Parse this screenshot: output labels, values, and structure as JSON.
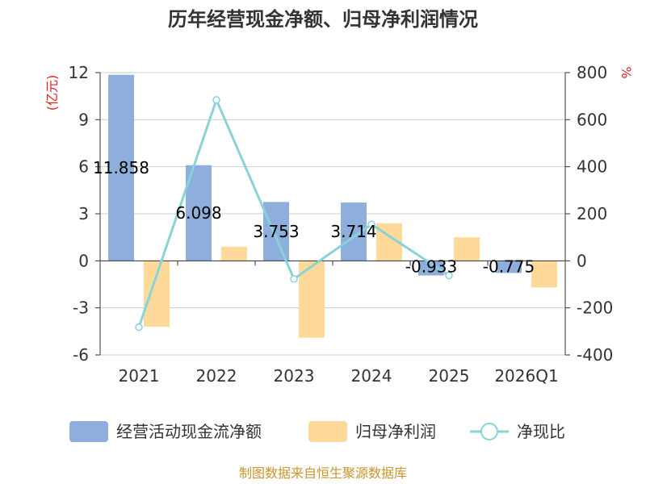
{
  "chart_data": {
    "type": "bar",
    "title": "历年经营现金净额、归母净利润情况",
    "categories": [
      "2021",
      "2022",
      "2023",
      "2024",
      "2025",
      "2026Q1"
    ],
    "series": [
      {
        "name": "经营活动现金流净额",
        "kind": "bar",
        "axis": "left",
        "color": "#8eaedb",
        "values": [
          11.858,
          6.098,
          3.753,
          3.714,
          -0.933,
          -0.775
        ],
        "labels": [
          "11.858",
          "6.098",
          "3.753",
          "3.714",
          "-0.933",
          "-0.775"
        ]
      },
      {
        "name": "归母净利润",
        "kind": "bar",
        "axis": "left",
        "color": "#ffd999",
        "values": [
          -4.2,
          0.9,
          -4.9,
          2.4,
          1.5,
          -1.7
        ]
      },
      {
        "name": "净现比",
        "kind": "line",
        "axis": "right",
        "color": "#89d3d8",
        "values": [
          -282,
          684,
          -77,
          155,
          -62,
          null
        ]
      }
    ],
    "left_axis": {
      "unit": "(亿元)",
      "min": -6,
      "max": 12,
      "ticks": [
        -6,
        -3,
        0,
        3,
        6,
        9,
        12
      ]
    },
    "right_axis": {
      "unit": "%",
      "min": -400,
      "max": 800,
      "ticks": [
        -400,
        -200,
        0,
        200,
        400,
        600,
        800
      ]
    },
    "grid": true,
    "legend_position": "bottom"
  },
  "source_text": "制图数据来自恒生聚源数据库"
}
